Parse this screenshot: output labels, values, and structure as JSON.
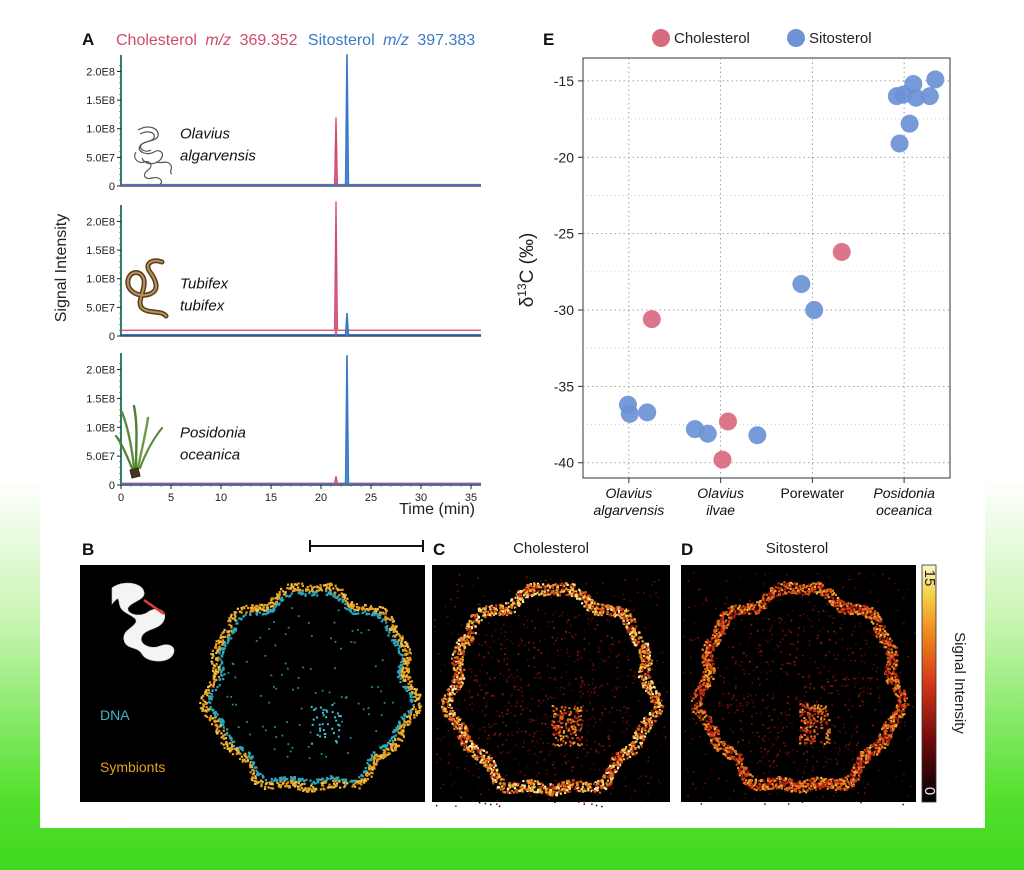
{
  "panel_a": {
    "letter": "A",
    "legend": {
      "cholesterol_name": "Cholesterol",
      "cholesterol_mz_label": "m/z",
      "cholesterol_mz": "369.352",
      "sitosterol_name": "Sitosterol",
      "sitosterol_mz_label": "m/z",
      "sitosterol_mz": "397.383",
      "cholesterol_color": "#d14a6a",
      "sitosterol_color": "#3a78c8"
    },
    "ylabel": "Signal Intensity",
    "xlabel": "Time (min)",
    "yticks": [
      "0",
      "5.0E7",
      "1.0E8",
      "1.5E8",
      "2.0E8"
    ],
    "xticks": [
      "0",
      "5",
      "10",
      "15",
      "20",
      "25",
      "30",
      "35"
    ],
    "subplots": [
      {
        "species_line1": "Olavius",
        "species_line2": "algarvensis",
        "icon": "worm-drawing-icon"
      },
      {
        "species_line1": "Tubifex",
        "species_line2": "tubifex",
        "icon": "tubifex-worm-icon"
      },
      {
        "species_line1": "Posidonia",
        "species_line2": "oceanica",
        "icon": "seagrass-icon"
      }
    ]
  },
  "panel_e": {
    "letter": "E",
    "legend_cholesterol": "Cholesterol",
    "legend_sitosterol": "Sitosterol",
    "ylabel_delta": "δ",
    "ylabel_sup": "13",
    "ylabel_rest": "C (‰)",
    "yticks": [
      "-15",
      "-20",
      "-25",
      "-30",
      "-35",
      "-40"
    ],
    "categories": [
      {
        "line1": "Olavius",
        "line2": "algarvensis",
        "italic": true
      },
      {
        "line1": "Olavius",
        "line2": "ilvae",
        "italic": true
      },
      {
        "line1": "Porewater",
        "line2": "",
        "italic": false
      },
      {
        "line1": "Posidonia",
        "line2": "oceanica",
        "italic": true
      }
    ]
  },
  "panel_b": {
    "letter": "B",
    "dna_label": "DNA",
    "symbionts_label": "Symbionts",
    "dna_color": "#3fb6c8",
    "symbionts_color": "#e8a020"
  },
  "panel_c": {
    "letter": "C",
    "title": "Cholesterol"
  },
  "panel_d": {
    "letter": "D",
    "title": "Sitosterol"
  },
  "colorbar": {
    "max": "15",
    "min": "0",
    "label": "Signal Intensity"
  },
  "chart_data": [
    {
      "type": "line",
      "title": "",
      "xlabel": "Time (min)",
      "ylabel": "Signal Intensity",
      "xlim": [
        0,
        36
      ],
      "ylim": [
        0,
        220000000.0
      ],
      "subplots": [
        {
          "name": "Olavius algarvensis",
          "series": [
            {
              "name": "Cholesterol m/z 369.352",
              "peak_time": 21.5,
              "peak_value": 120000000.0,
              "baseline": 2500000.0
            },
            {
              "name": "Sitosterol m/z 397.383",
              "peak_time": 22.6,
              "peak_value": 230000000.0,
              "baseline": 1500000.0
            }
          ]
        },
        {
          "name": "Tubifex tubifex",
          "series": [
            {
              "name": "Cholesterol m/z 369.352",
              "peak_time": 21.5,
              "peak_value": 235000000.0,
              "baseline": 10000000.0
            },
            {
              "name": "Sitosterol m/z 397.383",
              "peak_time": 22.6,
              "peak_value": 40000000.0,
              "baseline": 2000000.0
            }
          ]
        },
        {
          "name": "Posidonia oceanica",
          "series": [
            {
              "name": "Cholesterol m/z 369.352",
              "peak_time": 21.5,
              "peak_value": 15000000.0,
              "baseline": 3000000.0
            },
            {
              "name": "Sitosterol m/z 397.383",
              "peak_time": 22.6,
              "peak_value": 225000000.0,
              "baseline": 1500000.0
            }
          ]
        }
      ]
    },
    {
      "type": "scatter",
      "title": "",
      "xlabel": "",
      "ylabel": "δ13C (‰)",
      "ylim": [
        -41,
        -13.5
      ],
      "categories": [
        "Olavius algarvensis",
        "Olavius ilvae",
        "Porewater",
        "Posidonia oceanica"
      ],
      "grid": true,
      "legend": "top",
      "series": [
        {
          "name": "Cholesterol",
          "color": "#d9697f",
          "points": [
            {
              "x": 1.25,
              "y": -30.6
            },
            {
              "x": 2.08,
              "y": -37.3
            },
            {
              "x": 2.02,
              "y": -39.8
            },
            {
              "x": 3.32,
              "y": -26.2
            }
          ]
        },
        {
          "name": "Sitosterol",
          "color": "#6b93d6",
          "points": [
            {
              "x": 0.99,
              "y": -36.2
            },
            {
              "x": 1.01,
              "y": -36.8
            },
            {
              "x": 1.2,
              "y": -36.7
            },
            {
              "x": 1.72,
              "y": -37.8
            },
            {
              "x": 1.86,
              "y": -38.1
            },
            {
              "x": 2.4,
              "y": -38.2
            },
            {
              "x": 2.88,
              "y": -28.3
            },
            {
              "x": 3.02,
              "y": -30.0
            },
            {
              "x": 3.92,
              "y": -16.0
            },
            {
              "x": 3.99,
              "y": -15.9
            },
            {
              "x": 4.06,
              "y": -17.8
            },
            {
              "x": 4.1,
              "y": -15.2
            },
            {
              "x": 4.13,
              "y": -16.1
            },
            {
              "x": 4.28,
              "y": -16.0
            },
            {
              "x": 4.34,
              "y": -14.9
            },
            {
              "x": 3.95,
              "y": -19.1
            }
          ]
        }
      ]
    }
  ]
}
